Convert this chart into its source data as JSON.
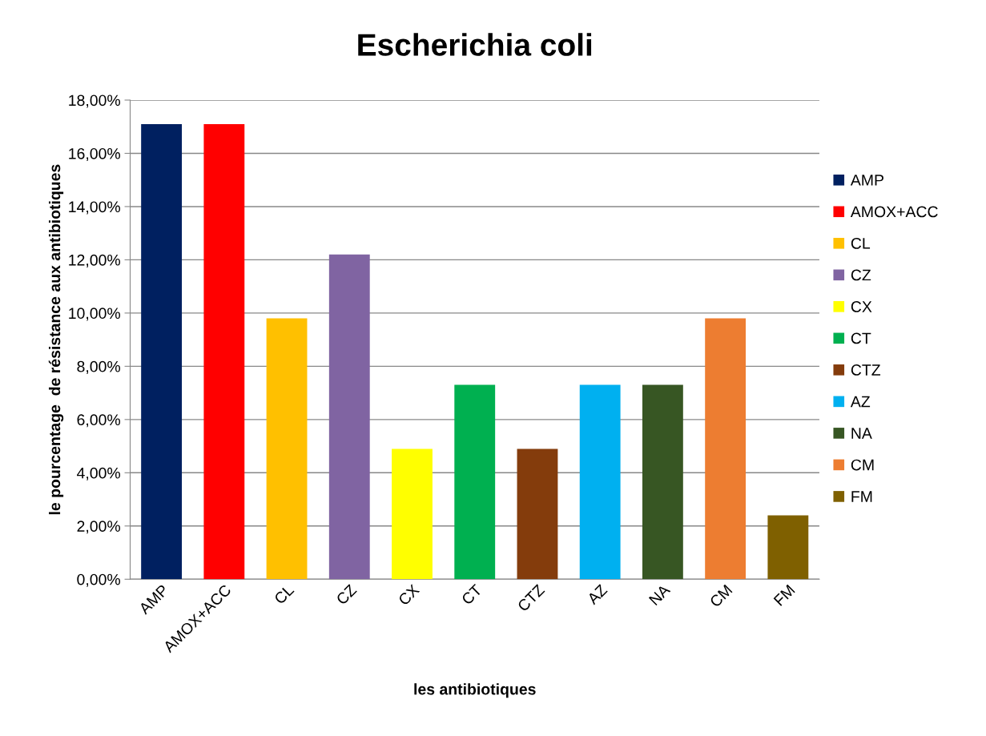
{
  "chart_data": {
    "type": "bar",
    "title": "Escherichia coli",
    "xlabel": "les antibiotiques",
    "ylabel": "le pourcentage  de résistance aux antibiotiques",
    "categories": [
      "AMP",
      "AMOX+ACC",
      "CL",
      "CZ",
      "CX",
      "CT",
      "CTZ",
      "AZ",
      "NA",
      "CM",
      "FM"
    ],
    "series": [
      {
        "name": "AMP",
        "color": "#002060",
        "values": [
          17.1,
          null,
          null,
          null,
          null,
          null,
          null,
          null,
          null,
          null,
          null
        ]
      },
      {
        "name": "AMOX+ACC",
        "color": "#ff0000",
        "values": [
          null,
          17.1,
          null,
          null,
          null,
          null,
          null,
          null,
          null,
          null,
          null
        ]
      },
      {
        "name": "CL",
        "color": "#ffc000",
        "values": [
          null,
          null,
          9.8,
          null,
          null,
          null,
          null,
          null,
          null,
          null,
          null
        ]
      },
      {
        "name": "CZ",
        "color": "#8064a2",
        "values": [
          null,
          null,
          null,
          12.2,
          null,
          null,
          null,
          null,
          null,
          null,
          null
        ]
      },
      {
        "name": "CX",
        "color": "#ffff00",
        "values": [
          null,
          null,
          null,
          null,
          4.9,
          null,
          null,
          null,
          null,
          null,
          null
        ]
      },
      {
        "name": "CT",
        "color": "#00b050",
        "values": [
          null,
          null,
          null,
          null,
          null,
          7.3,
          null,
          null,
          null,
          null,
          null
        ]
      },
      {
        "name": "CTZ",
        "color": "#843c0c",
        "values": [
          null,
          null,
          null,
          null,
          null,
          null,
          4.9,
          null,
          null,
          null,
          null
        ]
      },
      {
        "name": "AZ",
        "color": "#00b0f0",
        "values": [
          null,
          null,
          null,
          null,
          null,
          null,
          null,
          7.3,
          null,
          null,
          null
        ]
      },
      {
        "name": "NA",
        "color": "#375623",
        "values": [
          null,
          null,
          null,
          null,
          null,
          null,
          null,
          null,
          7.3,
          null,
          null
        ]
      },
      {
        "name": "CM",
        "color": "#ed7d31",
        "values": [
          null,
          null,
          null,
          null,
          null,
          null,
          null,
          null,
          null,
          9.8,
          null
        ]
      },
      {
        "name": "FM",
        "color": "#7f6000",
        "values": [
          null,
          null,
          null,
          null,
          null,
          null,
          null,
          null,
          null,
          null,
          2.4
        ]
      }
    ],
    "ylim": [
      0,
      18
    ],
    "yticks": [
      {
        "value": 0,
        "label": "0,00%"
      },
      {
        "value": 2,
        "label": "2,00%"
      },
      {
        "value": 4,
        "label": "4,00%"
      },
      {
        "value": 6,
        "label": "6,00%"
      },
      {
        "value": 8,
        "label": "8,00%"
      },
      {
        "value": 10,
        "label": "10,00%"
      },
      {
        "value": 12,
        "label": "12,00%"
      },
      {
        "value": 14,
        "label": "14,00%"
      },
      {
        "value": 16,
        "label": "16,00%"
      },
      {
        "value": 18,
        "label": "18,00%"
      }
    ],
    "grid": "y",
    "legend": "right"
  }
}
